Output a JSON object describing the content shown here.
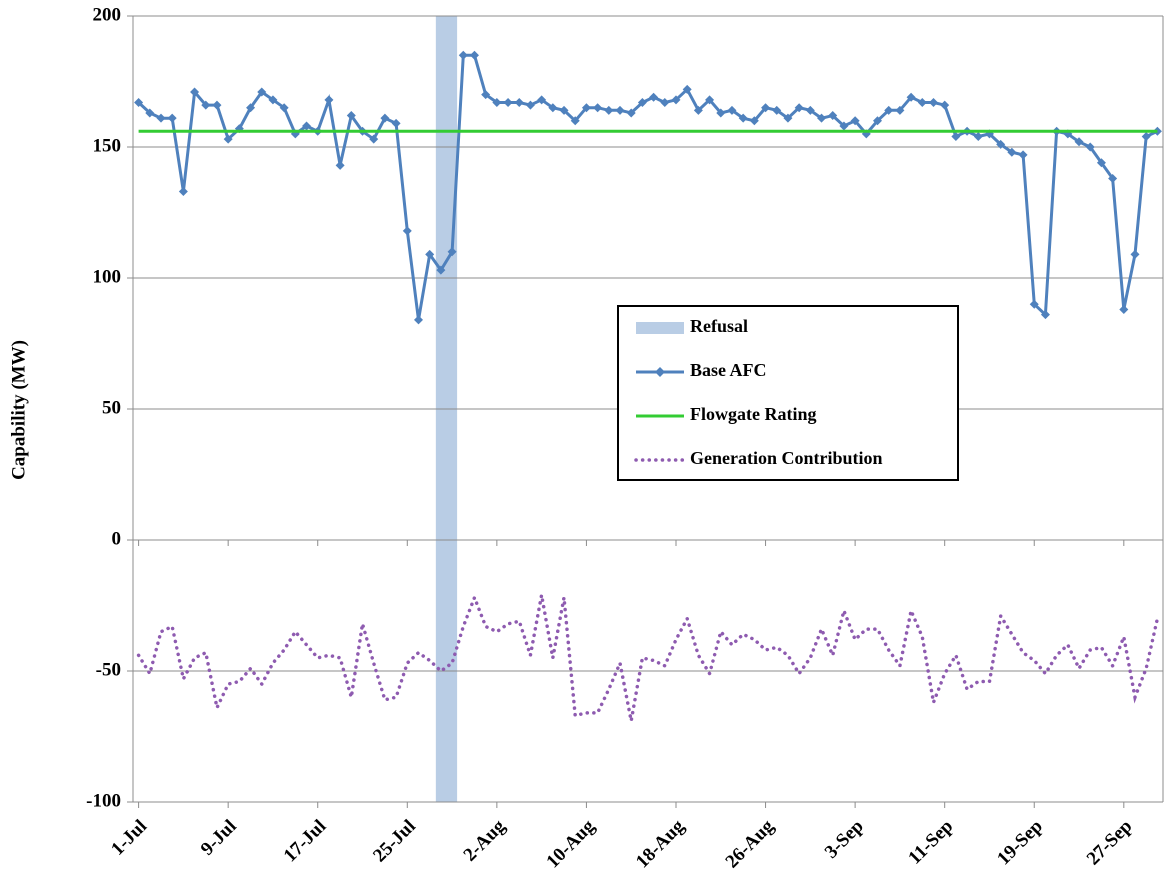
{
  "chart_data": {
    "type": "line",
    "y_label": "Capability (MW)",
    "categories": [
      "1-Jul",
      null,
      null,
      null,
      null,
      null,
      null,
      null,
      "9-Jul",
      null,
      null,
      null,
      null,
      null,
      null,
      null,
      "17-Jul",
      null,
      null,
      null,
      null,
      null,
      null,
      null,
      "25-Jul",
      null,
      null,
      null,
      null,
      null,
      null,
      null,
      "2-Aug",
      null,
      null,
      null,
      null,
      null,
      null,
      null,
      "10-Aug",
      null,
      null,
      null,
      null,
      null,
      null,
      null,
      "18-Aug",
      null,
      null,
      null,
      null,
      null,
      null,
      null,
      "26-Aug",
      null,
      null,
      null,
      null,
      null,
      null,
      null,
      "3-Sep",
      null,
      null,
      null,
      null,
      null,
      null,
      null,
      "11-Sep",
      null,
      null,
      null,
      null,
      null,
      null,
      null,
      "19-Sep",
      null,
      null,
      null,
      null,
      null,
      null,
      null,
      "27-Sep",
      null,
      null,
      null
    ],
    "bands": [
      {
        "name": "Refusal",
        "color": "#b9cde5",
        "start": 27,
        "end": 28
      }
    ],
    "series": [
      {
        "name": "Base AFC",
        "color": "#4f81bd",
        "marker": "diamond",
        "dash": "solid",
        "values": [
          167,
          163,
          161,
          161,
          133,
          171,
          166,
          166,
          153,
          157,
          165,
          171,
          168,
          165,
          155,
          158,
          156,
          168,
          143,
          162,
          156,
          153,
          161,
          159,
          118,
          84,
          109,
          103,
          110,
          185,
          185,
          170,
          167,
          167,
          167,
          166,
          168,
          165,
          164,
          160,
          165,
          165,
          164,
          164,
          163,
          167,
          169,
          167,
          168,
          172,
          164,
          168,
          163,
          164,
          161,
          160,
          165,
          164,
          161,
          165,
          164,
          161,
          162,
          158,
          160,
          155,
          160,
          164,
          164,
          169,
          167,
          167,
          166,
          154,
          156,
          154,
          155,
          151,
          148,
          147,
          90,
          86,
          156,
          155,
          152,
          150,
          144,
          138,
          88,
          109,
          154,
          156
        ]
      },
      {
        "name": "Flowgate Rating",
        "color": "#33cc33",
        "marker": "none",
        "dash": "solid",
        "values": [
          156,
          156,
          156,
          156,
          156,
          156,
          156,
          156,
          156,
          156,
          156,
          156,
          156,
          156,
          156,
          156,
          156,
          156,
          156,
          156,
          156,
          156,
          156,
          156,
          156,
          156,
          156,
          156,
          156,
          156,
          156,
          156,
          156,
          156,
          156,
          156,
          156,
          156,
          156,
          156,
          156,
          156,
          156,
          156,
          156,
          156,
          156,
          156,
          156,
          156,
          156,
          156,
          156,
          156,
          156,
          156,
          156,
          156,
          156,
          156,
          156,
          156,
          156,
          156,
          156,
          156,
          156,
          156,
          156,
          156,
          156,
          156,
          156,
          156,
          156,
          156,
          156,
          156,
          156,
          156,
          156,
          156,
          156,
          156,
          156,
          156,
          156,
          156,
          156,
          156,
          156,
          156
        ]
      },
      {
        "name": "Generation Contribution",
        "color": "#8e5bb0",
        "marker": "none",
        "dash": "dotted",
        "values": [
          -44,
          -51,
          -35,
          -33,
          -53,
          -45,
          -43,
          -64,
          -55,
          -54,
          -49,
          -55,
          -47,
          -42,
          -35,
          -40,
          -45,
          -44,
          -45,
          -60,
          -32,
          -47,
          -61,
          -60,
          -47,
          -43,
          -46,
          -50,
          -47,
          -33,
          -22,
          -33,
          -35,
          -32,
          -31,
          -44,
          -21,
          -45,
          -22,
          -67,
          -66,
          -66,
          -57,
          -47,
          -69,
          -45,
          -46,
          -48,
          -38,
          -30,
          -44,
          -51,
          -35,
          -40,
          -36,
          -38,
          -42,
          -41,
          -44,
          -51,
          -45,
          -34,
          -44,
          -27,
          -38,
          -34,
          -34,
          -42,
          -48,
          -27,
          -37,
          -62,
          -51,
          -44,
          -57,
          -54,
          -54,
          -29,
          -36,
          -43,
          -46,
          -51,
          -44,
          -40,
          -49,
          -42,
          -41,
          -48,
          -37,
          -60,
          -49,
          -30
        ]
      }
    ],
    "ylim": [
      -100,
      200
    ],
    "yticks": [
      -100,
      -50,
      0,
      50,
      100,
      150,
      200
    ],
    "grid": true
  }
}
